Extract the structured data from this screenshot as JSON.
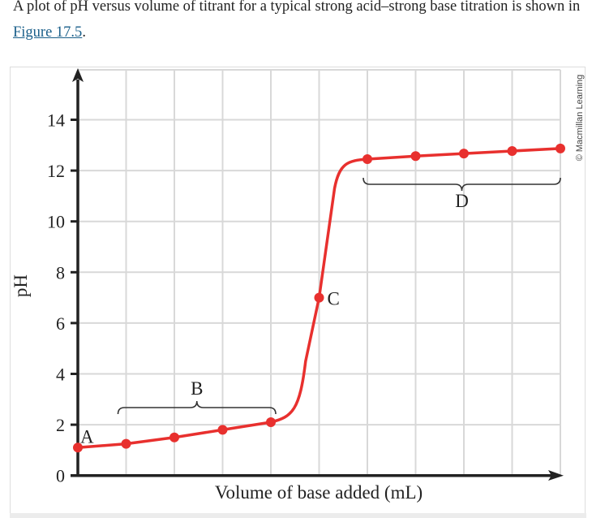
{
  "intro": {
    "text_before": "A plot of pH versus volume of titrant for a typical strong acid–strong base titration is shown in ",
    "link": "Figure 17.5",
    "text_after": "."
  },
  "credit": "© Macmillan Learning",
  "chart_data": {
    "type": "line",
    "xlabel": "Volume of base added (mL)",
    "ylabel": "pH",
    "ylim": [
      0,
      14
    ],
    "yticks": [
      "0",
      "2",
      "4",
      "6",
      "8",
      "10",
      "12",
      "14"
    ],
    "grid": true,
    "line_color": "#e8302e",
    "points": [
      {
        "x": 0,
        "y": 1.1,
        "label": "A"
      },
      {
        "x": 1,
        "y": 1.25
      },
      {
        "x": 2,
        "y": 1.5
      },
      {
        "x": 3,
        "y": 1.8
      },
      {
        "x": 4,
        "y": 2.1
      },
      {
        "x": 5,
        "y": 7.0,
        "label": "C"
      },
      {
        "x": 6,
        "y": 12.45
      },
      {
        "x": 7,
        "y": 12.57
      },
      {
        "x": 8,
        "y": 12.67
      },
      {
        "x": 9,
        "y": 12.77
      },
      {
        "x": 10,
        "y": 12.87
      }
    ],
    "regions": [
      {
        "label": "B",
        "from": 1,
        "to": 4
      },
      {
        "label": "D",
        "from": 6,
        "to": 10
      }
    ]
  }
}
